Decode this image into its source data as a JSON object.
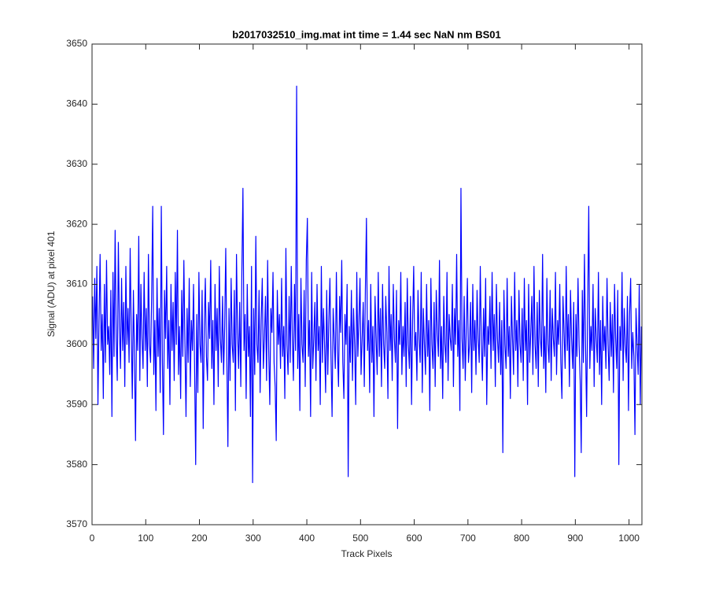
{
  "chart_data": {
    "type": "line",
    "title": "b2017032510_img.mat int time = 1.44 sec  NaN nm BS01",
    "x_label": "Track Pixels",
    "y_label": "Signal (ADU) at pixel 401",
    "xlim": [
      0,
      1024
    ],
    "ylim": [
      3570,
      3650
    ],
    "xticks": [
      0,
      100,
      200,
      300,
      400,
      500,
      600,
      700,
      800,
      900,
      1000
    ],
    "yticks": [
      3570,
      3580,
      3590,
      3600,
      3610,
      3620,
      3630,
      3640,
      3650
    ],
    "grid": false,
    "x": [
      1,
      3,
      5,
      7,
      9,
      11,
      13,
      15,
      17,
      19,
      21,
      23,
      25,
      27,
      29,
      31,
      33,
      35,
      37,
      39,
      41,
      43,
      45,
      47,
      49,
      51,
      53,
      55,
      57,
      59,
      61,
      63,
      65,
      67,
      69,
      71,
      73,
      75,
      77,
      79,
      81,
      83,
      85,
      87,
      89,
      91,
      93,
      95,
      97,
      99,
      101,
      103,
      105,
      107,
      109,
      111,
      113,
      115,
      117,
      119,
      121,
      123,
      125,
      127,
      129,
      131,
      133,
      135,
      137,
      139,
      141,
      143,
      145,
      147,
      149,
      151,
      153,
      155,
      157,
      159,
      161,
      163,
      165,
      167,
      169,
      171,
      173,
      175,
      177,
      179,
      181,
      183,
      185,
      187,
      189,
      191,
      193,
      195,
      197,
      199,
      201,
      203,
      205,
      207,
      209,
      211,
      213,
      215,
      217,
      219,
      221,
      223,
      225,
      227,
      229,
      231,
      233,
      235,
      237,
      239,
      241,
      243,
      245,
      247,
      249,
      251,
      253,
      255,
      257,
      259,
      261,
      263,
      265,
      267,
      269,
      271,
      273,
      275,
      277,
      279,
      281,
      283,
      285,
      287,
      289,
      291,
      293,
      295,
      297,
      299,
      301,
      303,
      305,
      307,
      309,
      311,
      313,
      315,
      317,
      319,
      321,
      323,
      325,
      327,
      329,
      331,
      333,
      335,
      337,
      339,
      341,
      343,
      345,
      347,
      349,
      351,
      353,
      355,
      357,
      359,
      361,
      363,
      365,
      367,
      369,
      371,
      373,
      375,
      377,
      379,
      381,
      383,
      385,
      387,
      389,
      391,
      393,
      395,
      397,
      399,
      401,
      403,
      405,
      407,
      409,
      411,
      413,
      415,
      417,
      419,
      421,
      423,
      425,
      427,
      429,
      431,
      433,
      435,
      437,
      439,
      441,
      443,
      445,
      447,
      449,
      451,
      453,
      455,
      457,
      459,
      461,
      463,
      465,
      467,
      469,
      471,
      473,
      475,
      477,
      479,
      481,
      483,
      485,
      487,
      489,
      491,
      493,
      495,
      497,
      499,
      501,
      503,
      505,
      507,
      509,
      511,
      513,
      515,
      517,
      519,
      521,
      523,
      525,
      527,
      529,
      531,
      533,
      535,
      537,
      539,
      541,
      543,
      545,
      547,
      549,
      551,
      553,
      555,
      557,
      559,
      561,
      563,
      565,
      567,
      569,
      571,
      573,
      575,
      577,
      579,
      581,
      583,
      585,
      587,
      589,
      591,
      593,
      595,
      597,
      599,
      601,
      603,
      605,
      607,
      609,
      611,
      613,
      615,
      617,
      619,
      621,
      623,
      625,
      627,
      629,
      631,
      633,
      635,
      637,
      639,
      641,
      643,
      645,
      647,
      649,
      651,
      653,
      655,
      657,
      659,
      661,
      663,
      665,
      667,
      669,
      671,
      673,
      675,
      677,
      679,
      681,
      683,
      685,
      687,
      689,
      691,
      693,
      695,
      697,
      699,
      701,
      703,
      705,
      707,
      709,
      711,
      713,
      715,
      717,
      719,
      721,
      723,
      725,
      727,
      729,
      731,
      733,
      735,
      737,
      739,
      741,
      743,
      745,
      747,
      749,
      751,
      753,
      755,
      757,
      759,
      761,
      763,
      765,
      767,
      769,
      771,
      773,
      775,
      777,
      779,
      781,
      783,
      785,
      787,
      789,
      791,
      793,
      795,
      797,
      799,
      801,
      803,
      805,
      807,
      809,
      811,
      813,
      815,
      817,
      819,
      821,
      823,
      825,
      827,
      829,
      831,
      833,
      835,
      837,
      839,
      841,
      843,
      845,
      847,
      849,
      851,
      853,
      855,
      857,
      859,
      861,
      863,
      865,
      867,
      869,
      871,
      873,
      875,
      877,
      879,
      881,
      883,
      885,
      887,
      889,
      891,
      893,
      895,
      897,
      899,
      901,
      903,
      905,
      907,
      909,
      911,
      913,
      915,
      917,
      919,
      921,
      923,
      925,
      927,
      929,
      931,
      933,
      935,
      937,
      939,
      941,
      943,
      945,
      947,
      949,
      951,
      953,
      955,
      957,
      959,
      961,
      963,
      965,
      967,
      969,
      971,
      973,
      975,
      977,
      979,
      981,
      983,
      985,
      987,
      989,
      991,
      993,
      995,
      997,
      999,
      1001,
      1003,
      1005,
      1007,
      1009,
      1011,
      1013,
      1015,
      1017,
      1019,
      1021,
      1023
    ],
    "series": [
      {
        "color": "#0000ff",
        "values": [
          3608,
          3596,
          3611,
          3601,
          3613,
          3590,
          3604,
          3615,
          3599,
          3605,
          3591,
          3610,
          3597,
          3614,
          3600,
          3603,
          3595,
          3609,
          3588,
          3612,
          3598,
          3619,
          3601,
          3594,
          3617,
          3603,
          3596,
          3611,
          3599,
          3607,
          3593,
          3613,
          3600,
          3606,
          3597,
          3616,
          3602,
          3591,
          3609,
          3598,
          3584,
          3605,
          3599,
          3618,
          3594,
          3610,
          3601,
          3596,
          3612,
          3599,
          3606,
          3593,
          3615,
          3600,
          3597,
          3608,
          3623,
          3595,
          3604,
          3589,
          3611,
          3598,
          3606,
          3592,
          3623,
          3597,
          3585,
          3609,
          3601,
          3613,
          3596,
          3604,
          3590,
          3610,
          3599,
          3607,
          3594,
          3612,
          3600,
          3619,
          3595,
          3603,
          3591,
          3609,
          3598,
          3614,
          3600,
          3588,
          3606,
          3597,
          3611,
          3593,
          3604,
          3599,
          3610,
          3596,
          3580,
          3605,
          3592,
          3612,
          3600,
          3597,
          3609,
          3586,
          3603,
          3611,
          3598,
          3594,
          3607,
          3601,
          3614,
          3596,
          3604,
          3590,
          3610,
          3599,
          3606,
          3593,
          3613,
          3601,
          3597,
          3608,
          3595,
          3603,
          3616,
          3598,
          3583,
          3606,
          3594,
          3611,
          3600,
          3597,
          3609,
          3589,
          3615,
          3602,
          3596,
          3607,
          3593,
          3612,
          3626,
          3599,
          3605,
          3591,
          3610,
          3598,
          3603,
          3588,
          3613,
          3577,
          3606,
          3595,
          3618,
          3600,
          3597,
          3609,
          3592,
          3604,
          3611,
          3596,
          3601,
          3608,
          3594,
          3614,
          3599,
          3590,
          3606,
          3602,
          3612,
          3597,
          3593,
          3584,
          3609,
          3600,
          3605,
          3596,
          3611,
          3598,
          3603,
          3591,
          3616,
          3600,
          3595,
          3608,
          3597,
          3613,
          3601,
          3594,
          3610,
          3599,
          3643,
          3596,
          3605,
          3589,
          3611,
          3600,
          3597,
          3609,
          3593,
          3614,
          3621,
          3598,
          3604,
          3588,
          3612,
          3596,
          3601,
          3607,
          3594,
          3610,
          3599,
          3603,
          3590,
          3613,
          3597,
          3606,
          3600,
          3592,
          3609,
          3595,
          3604,
          3611,
          3598,
          3588,
          3606,
          3601,
          3596,
          3612,
          3599,
          3593,
          3608,
          3602,
          3614,
          3597,
          3591,
          3605,
          3600,
          3610,
          3578,
          3603,
          3597,
          3609,
          3594,
          3606,
          3600,
          3590,
          3612,
          3598,
          3604,
          3611,
          3595,
          3601,
          3607,
          3593,
          3609,
          3621,
          3599,
          3604,
          3592,
          3610,
          3597,
          3603,
          3588,
          3608,
          3601,
          3595,
          3612,
          3598,
          3606,
          3593,
          3610,
          3600,
          3596,
          3608,
          3602,
          3591,
          3613,
          3599,
          3605,
          3594,
          3610,
          3601,
          3597,
          3609,
          3586,
          3604,
          3600,
          3612,
          3595,
          3603,
          3598,
          3607,
          3593,
          3611,
          3600,
          3596,
          3608,
          3590,
          3604,
          3613,
          3599,
          3602,
          3594,
          3609,
          3601,
          3597,
          3612,
          3592,
          3606,
          3600,
          3595,
          3610,
          3598,
          3604,
          3589,
          3611,
          3600,
          3596,
          3607,
          3593,
          3609,
          3602,
          3598,
          3614,
          3596,
          3603,
          3591,
          3608,
          3600,
          3597,
          3612,
          3594,
          3605,
          3601,
          3599,
          3610,
          3593,
          3606,
          3600,
          3615,
          3598,
          3604,
          3589,
          3626,
          3601,
          3596,
          3608,
          3594,
          3603,
          3611,
          3597,
          3600,
          3607,
          3592,
          3610,
          3599,
          3604,
          3595,
          3609,
          3601,
          3597,
          3613,
          3600,
          3594,
          3606,
          3598,
          3611,
          3590,
          3603,
          3600,
          3608,
          3596,
          3612,
          3599,
          3605,
          3593,
          3610,
          3601,
          3597,
          3607,
          3595,
          3604,
          3582,
          3609,
          3600,
          3596,
          3611,
          3598,
          3603,
          3591,
          3608,
          3601,
          3595,
          3612,
          3599,
          3604,
          3593,
          3609,
          3600,
          3597,
          3606,
          3594,
          3611,
          3599,
          3604,
          3590,
          3610,
          3597,
          3602,
          3608,
          3595,
          3613,
          3600,
          3596,
          3607,
          3593,
          3609,
          3601,
          3598,
          3615,
          3596,
          3603,
          3592,
          3611,
          3600,
          3597,
          3609,
          3594,
          3606,
          3601,
          3598,
          3612,
          3595,
          3604,
          3600,
          3610,
          3597,
          3591,
          3608,
          3602,
          3596,
          3613,
          3599,
          3605,
          3593,
          3609,
          3601,
          3596,
          3607,
          3578,
          3605,
          3598,
          3611,
          3600,
          3594,
          3582,
          3609,
          3597,
          3615,
          3600,
          3588,
          3606,
          3623,
          3596,
          3603,
          3599,
          3610,
          3593,
          3606,
          3601,
          3597,
          3612,
          3595,
          3604,
          3590,
          3608,
          3599,
          3603,
          3596,
          3611,
          3600,
          3594,
          3607,
          3598,
          3605,
          3592,
          3610,
          3601,
          3596,
          3609,
          3580,
          3603,
          3599,
          3612,
          3594,
          3606,
          3600,
          3597,
          3608,
          3589,
          3605,
          3611,
          3596,
          3602,
          3598,
          3585,
          3606,
          3600,
          3595,
          3610,
          3590,
          3603
        ]
      }
    ]
  }
}
